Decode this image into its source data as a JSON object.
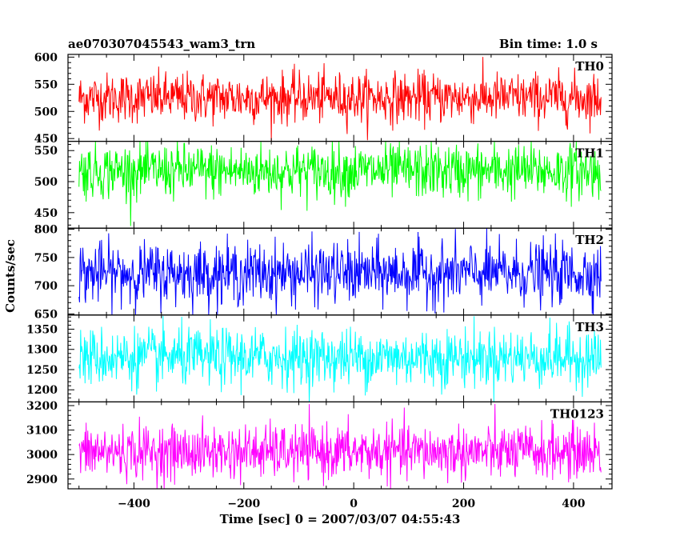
{
  "header": {
    "title": "ae070307045543_wam3_trn",
    "bin_time": "Bin time: 1.0 s"
  },
  "chart_data": {
    "type": "line",
    "xlabel": "Time [sec] 0 = 2007/03/07 04:55:43",
    "ylabel": "Counts/sec",
    "xlim": [
      -520,
      470
    ],
    "x_range": [
      -500,
      450
    ],
    "x_ticks": [
      -400,
      -200,
      0,
      200,
      400
    ],
    "x_tick_labels": [
      "−400",
      "−200",
      "0",
      "200",
      "400"
    ],
    "grid": false,
    "panels": [
      {
        "name": "TH0",
        "color": "#ff0000",
        "ylim": [
          445,
          605
        ],
        "ticks": [
          450,
          500,
          550,
          600
        ],
        "mean": 525,
        "amplitude": 23
      },
      {
        "name": "TH1",
        "color": "#00ff00",
        "ylim": [
          425,
          565
        ],
        "ticks": [
          450,
          500,
          550
        ],
        "mean": 517,
        "amplitude": 22
      },
      {
        "name": "TH2",
        "color": "#0000ff",
        "ylim": [
          648,
          802
        ],
        "ticks": [
          650,
          700,
          750,
          800
        ],
        "mean": 722,
        "amplitude": 27
      },
      {
        "name": "TH3",
        "color": "#00ffff",
        "ylim": [
          1170,
          1385
        ],
        "ticks": [
          1200,
          1250,
          1300,
          1350
        ],
        "mean": 1280,
        "amplitude": 36
      },
      {
        "name": "TH0123",
        "color": "#ff00ff",
        "ylim": [
          2860,
          3215
        ],
        "ticks": [
          2900,
          3000,
          3100,
          3200
        ],
        "mean": 3010,
        "amplitude": 55
      }
    ]
  }
}
